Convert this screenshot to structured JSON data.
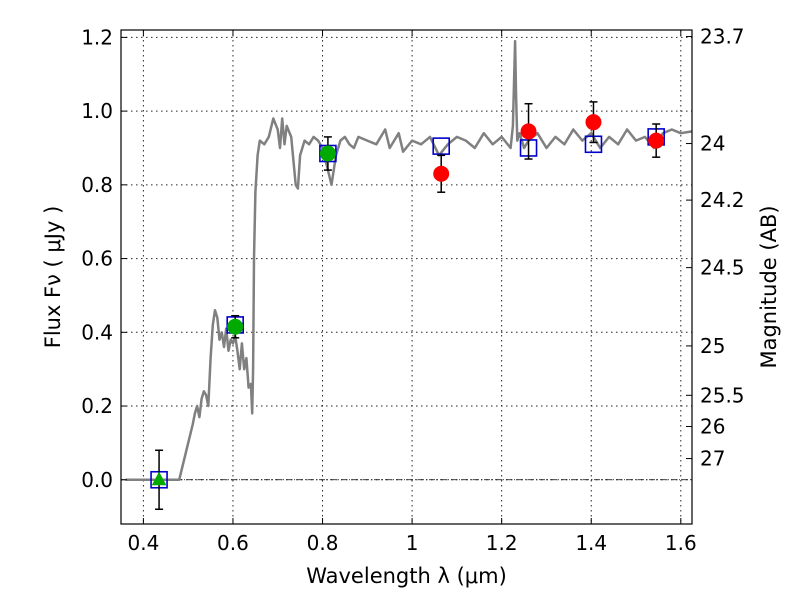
{
  "chart_data": {
    "type": "scatter",
    "title": "",
    "xlabel": "Wavelength  λ (μm)",
    "ylabel": "Flux  Fν  ( μJy )",
    "y2label": "Magnitude (AB)",
    "xlim": [
      0.35,
      1.625
    ],
    "ylim": [
      -0.12,
      1.22
    ],
    "grid": true,
    "x_ticks": [
      {
        "value": 0.4,
        "label": "0.4"
      },
      {
        "value": 0.6,
        "label": "0.6"
      },
      {
        "value": 0.8,
        "label": "0.8"
      },
      {
        "value": 1.0,
        "label": "1"
      },
      {
        "value": 1.2,
        "label": "1.2"
      },
      {
        "value": 1.4,
        "label": "1.4"
      },
      {
        "value": 1.6,
        "label": "1.6"
      }
    ],
    "y_ticks": [
      {
        "value": 0.0,
        "label": "0.0"
      },
      {
        "value": 0.2,
        "label": "0.2"
      },
      {
        "value": 0.4,
        "label": "0.4"
      },
      {
        "value": 0.6,
        "label": "0.6"
      },
      {
        "value": 0.8,
        "label": "0.8"
      },
      {
        "value": 1.0,
        "label": "1.0"
      },
      {
        "value": 1.2,
        "label": "1.2"
      }
    ],
    "y2_ticks": [
      {
        "value": 23.7,
        "label": "23.7"
      },
      {
        "value": 24.0,
        "label": "24"
      },
      {
        "value": 24.2,
        "label": "24.2"
      },
      {
        "value": 24.5,
        "label": "24.5"
      },
      {
        "value": 25.0,
        "label": "25"
      },
      {
        "value": 25.5,
        "label": "25.5"
      },
      {
        "value": 26.0,
        "label": "26"
      },
      {
        "value": 27.0,
        "label": "27"
      }
    ],
    "series": [
      {
        "kind": "line",
        "color": "#808080",
        "x": [
          0.36,
          0.44,
          0.48,
          0.5,
          0.51,
          0.515,
          0.52,
          0.525,
          0.53,
          0.535,
          0.54,
          0.545,
          0.55,
          0.555,
          0.56,
          0.565,
          0.57,
          0.575,
          0.58,
          0.585,
          0.59,
          0.595,
          0.6,
          0.605,
          0.61,
          0.615,
          0.62,
          0.625,
          0.63,
          0.635,
          0.64,
          0.643,
          0.645,
          0.647,
          0.65,
          0.655,
          0.66,
          0.67,
          0.68,
          0.69,
          0.7,
          0.705,
          0.71,
          0.715,
          0.72,
          0.73,
          0.74,
          0.745,
          0.75,
          0.76,
          0.77,
          0.78,
          0.79,
          0.8,
          0.81,
          0.82,
          0.83,
          0.84,
          0.85,
          0.86,
          0.87,
          0.88,
          0.9,
          0.92,
          0.94,
          0.95,
          0.96,
          0.97,
          0.98,
          1.0,
          1.02,
          1.04,
          1.06,
          1.08,
          1.1,
          1.12,
          1.14,
          1.16,
          1.18,
          1.2,
          1.22,
          1.225,
          1.23,
          1.232,
          1.235,
          1.24,
          1.25,
          1.26,
          1.28,
          1.3,
          1.32,
          1.34,
          1.36,
          1.38,
          1.4,
          1.42,
          1.44,
          1.46,
          1.48,
          1.5,
          1.52,
          1.54,
          1.56,
          1.58,
          1.6,
          1.625
        ],
        "y": [
          0.0,
          0.0,
          0.0,
          0.1,
          0.15,
          0.18,
          0.2,
          0.17,
          0.22,
          0.24,
          0.23,
          0.2,
          0.33,
          0.42,
          0.46,
          0.44,
          0.38,
          0.4,
          0.36,
          0.41,
          0.35,
          0.38,
          0.37,
          0.39,
          0.35,
          0.3,
          0.37,
          0.3,
          0.33,
          0.25,
          0.26,
          0.18,
          0.3,
          0.6,
          0.78,
          0.88,
          0.92,
          0.91,
          0.93,
          0.98,
          0.95,
          0.9,
          0.98,
          0.91,
          0.96,
          0.93,
          0.8,
          0.79,
          0.88,
          0.92,
          0.91,
          0.93,
          0.92,
          0.9,
          0.85,
          0.8,
          0.88,
          0.92,
          0.93,
          0.91,
          0.9,
          0.93,
          0.92,
          0.91,
          0.95,
          0.9,
          0.92,
          0.94,
          0.89,
          0.92,
          0.91,
          0.93,
          0.88,
          0.91,
          0.93,
          0.92,
          0.9,
          0.94,
          0.91,
          0.93,
          0.9,
          0.96,
          1.19,
          1.05,
          0.92,
          0.94,
          0.9,
          0.92,
          0.94,
          0.9,
          0.93,
          0.91,
          0.95,
          0.92,
          0.94,
          0.9,
          0.93,
          0.91,
          0.95,
          0.92,
          0.93,
          0.9,
          0.94,
          0.95,
          0.94,
          0.945
        ]
      },
      {
        "kind": "square-marker",
        "color": "#0000cc",
        "x": [
          0.435,
          0.605,
          0.812,
          1.065,
          1.26,
          1.405,
          1.545
        ],
        "y": [
          0.0,
          0.42,
          0.885,
          0.905,
          0.9,
          0.91,
          0.93
        ]
      },
      {
        "kind": "triangle-marker",
        "color": "#00aa00",
        "x": [
          0.435
        ],
        "y": [
          0.0
        ],
        "err": [
          0.08
        ]
      },
      {
        "kind": "circle-marker",
        "color": "#00aa00",
        "x": [
          0.605,
          0.812
        ],
        "y": [
          0.415,
          0.885
        ],
        "err": [
          0.03,
          0.045
        ]
      },
      {
        "kind": "circle-marker",
        "color": "#ff0000",
        "x": [
          1.065,
          1.26,
          1.405,
          1.545
        ],
        "y": [
          0.83,
          0.945,
          0.97,
          0.92
        ],
        "err": [
          0.05,
          0.075,
          0.055,
          0.045
        ]
      }
    ]
  }
}
